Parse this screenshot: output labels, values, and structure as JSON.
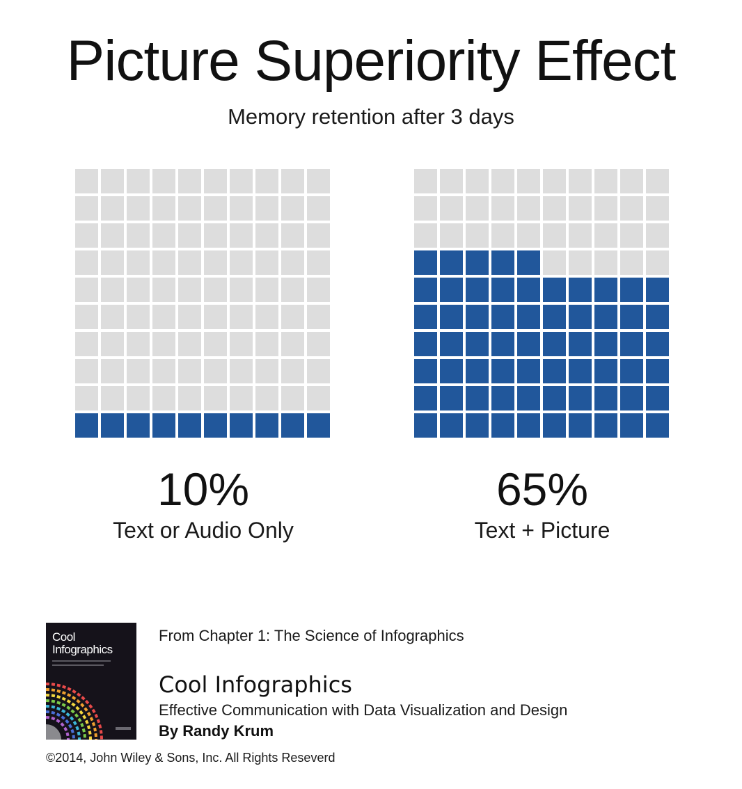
{
  "title": "Picture Superiority Effect",
  "subtitle": "Memory retention after 3 days",
  "chart_data": {
    "type": "waffle",
    "title": "Picture Superiority Effect",
    "subtitle": "Memory retention after 3 days",
    "cells_per_grid": 100,
    "colors": {
      "filled": "#21579b",
      "empty": "#dddddd"
    },
    "series": [
      {
        "name": "Text or Audio Only",
        "value": 10,
        "label": "10%"
      },
      {
        "name": "Text + Picture",
        "value": 65,
        "label": "65%"
      }
    ]
  },
  "footer": {
    "source": "From Chapter 1: The Science of Infographics",
    "book_title": "Cool Infographics",
    "book_subtitle": "Effective Communication with Data Visualization and Design",
    "author": "By Randy Krum",
    "copyright": "©2014, John Wiley & Sons, Inc. All Rights Reseverd",
    "cover_title_line1": "Cool",
    "cover_title_line2": "Infographics"
  }
}
